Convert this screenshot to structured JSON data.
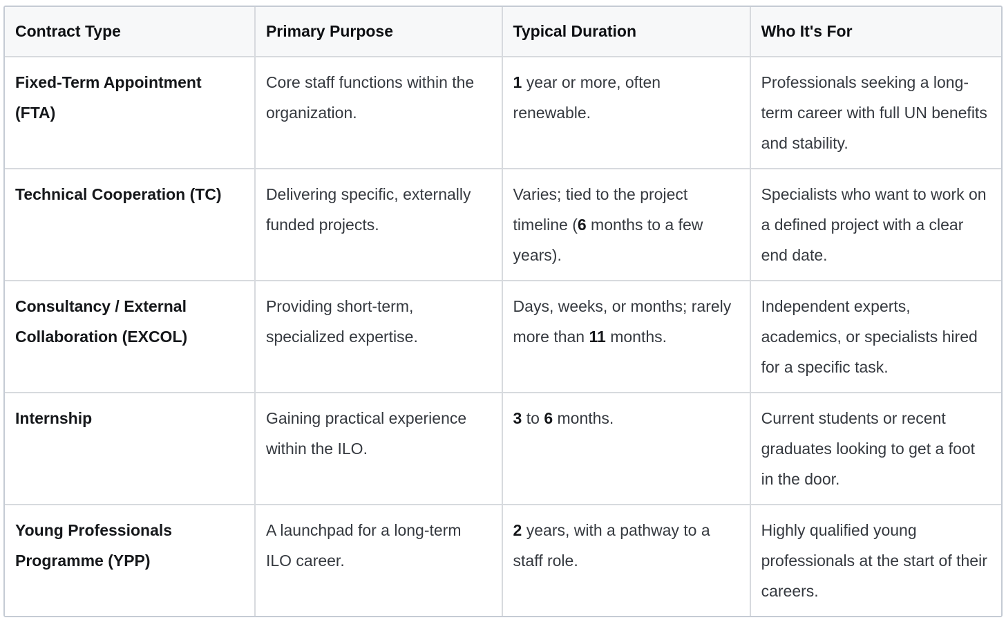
{
  "theme": {
    "page_bg": "#ffffff",
    "header_bg": "#f7f8f9",
    "cell_bg": "#ffffff",
    "inner_border": "#d7dade",
    "outer_border": "#c5cbd4",
    "header_text": "#0e1013",
    "body_text": "#35393f",
    "strong_text": "#15171a"
  },
  "table": {
    "columns": [
      {
        "label": "Contract Type"
      },
      {
        "label": "Primary Purpose"
      },
      {
        "label": "Typical Duration"
      },
      {
        "label": "Who It's For"
      }
    ],
    "rows": [
      {
        "contract_type": "Fixed-Term Appointment (FTA)",
        "primary_purpose": "Core staff functions within the organization.",
        "typical_duration": [
          {
            "text": "1",
            "bold": true
          },
          {
            "text": " year or more, often renewable.",
            "bold": false
          }
        ],
        "who_its_for": "Professionals seeking a long-term career with full UN benefits and stability."
      },
      {
        "contract_type": "Technical Cooperation (TC)",
        "primary_purpose": "Delivering specific, externally funded projects.",
        "typical_duration": [
          {
            "text": "Varies; tied to the project timeline (",
            "bold": false
          },
          {
            "text": "6",
            "bold": true
          },
          {
            "text": " months to a few years).",
            "bold": false
          }
        ],
        "who_its_for": "Specialists who want to work on a defined project with a clear end date."
      },
      {
        "contract_type": "Consultancy / External Collaboration (EXCOL)",
        "primary_purpose": "Providing short-term, specialized expertise.",
        "typical_duration": [
          {
            "text": "Days, weeks, or months; rarely more than ",
            "bold": false
          },
          {
            "text": "11",
            "bold": true
          },
          {
            "text": " months.",
            "bold": false
          }
        ],
        "who_its_for": "Independent experts, academics, or specialists hired for a specific task."
      },
      {
        "contract_type": "Internship",
        "primary_purpose": "Gaining practical experience within the ILO.",
        "typical_duration": [
          {
            "text": "3",
            "bold": true
          },
          {
            "text": " to ",
            "bold": false
          },
          {
            "text": "6",
            "bold": true
          },
          {
            "text": " months.",
            "bold": false
          }
        ],
        "who_its_for": "Current students or recent graduates looking to get a foot in the door."
      },
      {
        "contract_type": "Young Professionals Programme (YPP)",
        "primary_purpose": "A launchpad for a long-term ILO career.",
        "typical_duration": [
          {
            "text": "2",
            "bold": true
          },
          {
            "text": " years, with a pathway to a staff role.",
            "bold": false
          }
        ],
        "who_its_for": "Highly qualified young professionals at the start of their careers."
      }
    ]
  }
}
